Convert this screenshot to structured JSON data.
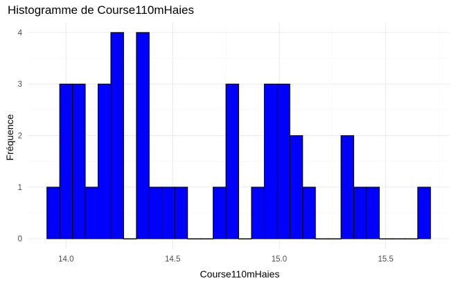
{
  "chart_data": {
    "type": "bar",
    "title": "Histogramme de Course110mHaies",
    "xlabel": "Course110mHaies",
    "ylabel": "Fréquence",
    "bin_width": 0.06,
    "bins": [
      {
        "start": 13.91,
        "end": 13.97,
        "count": 1
      },
      {
        "start": 13.97,
        "end": 14.03,
        "count": 3
      },
      {
        "start": 14.03,
        "end": 14.09,
        "count": 3
      },
      {
        "start": 14.09,
        "end": 14.15,
        "count": 1
      },
      {
        "start": 14.15,
        "end": 14.21,
        "count": 3
      },
      {
        "start": 14.21,
        "end": 14.27,
        "count": 4
      },
      {
        "start": 14.27,
        "end": 14.33,
        "count": 0
      },
      {
        "start": 14.33,
        "end": 14.39,
        "count": 4
      },
      {
        "start": 14.39,
        "end": 14.45,
        "count": 1
      },
      {
        "start": 14.45,
        "end": 14.51,
        "count": 1
      },
      {
        "start": 14.51,
        "end": 14.57,
        "count": 1
      },
      {
        "start": 14.57,
        "end": 14.63,
        "count": 0
      },
      {
        "start": 14.63,
        "end": 14.69,
        "count": 0
      },
      {
        "start": 14.69,
        "end": 14.75,
        "count": 1
      },
      {
        "start": 14.75,
        "end": 14.81,
        "count": 3
      },
      {
        "start": 14.81,
        "end": 14.87,
        "count": 0
      },
      {
        "start": 14.87,
        "end": 14.93,
        "count": 1
      },
      {
        "start": 14.93,
        "end": 14.99,
        "count": 3
      },
      {
        "start": 14.99,
        "end": 15.05,
        "count": 3
      },
      {
        "start": 15.05,
        "end": 15.11,
        "count": 2
      },
      {
        "start": 15.11,
        "end": 15.17,
        "count": 1
      },
      {
        "start": 15.17,
        "end": 15.23,
        "count": 0
      },
      {
        "start": 15.23,
        "end": 15.29,
        "count": 0
      },
      {
        "start": 15.29,
        "end": 15.35,
        "count": 2
      },
      {
        "start": 15.35,
        "end": 15.41,
        "count": 1
      },
      {
        "start": 15.41,
        "end": 15.47,
        "count": 1
      },
      {
        "start": 15.47,
        "end": 15.53,
        "count": 0
      },
      {
        "start": 15.53,
        "end": 15.59,
        "count": 0
      },
      {
        "start": 15.59,
        "end": 15.65,
        "count": 0
      },
      {
        "start": 15.65,
        "end": 15.71,
        "count": 1
      }
    ],
    "xlim": [
      13.82,
      15.8
    ],
    "ylim": [
      -0.2,
      4.2
    ],
    "x_ticks": [
      14.0,
      14.5,
      15.0,
      15.5
    ],
    "x_tick_labels": [
      "14.0",
      "14.5",
      "15.0",
      "15.5"
    ],
    "y_ticks": [
      0,
      1,
      2,
      3,
      4
    ],
    "y_tick_labels": [
      "0",
      "1",
      "2",
      "3",
      "4"
    ],
    "grid": true,
    "bar_fill": "#0000ff",
    "bar_outline": "#000000",
    "grid_major_color": "#ebebeb",
    "grid_minor_color": "#f5f5f5"
  }
}
